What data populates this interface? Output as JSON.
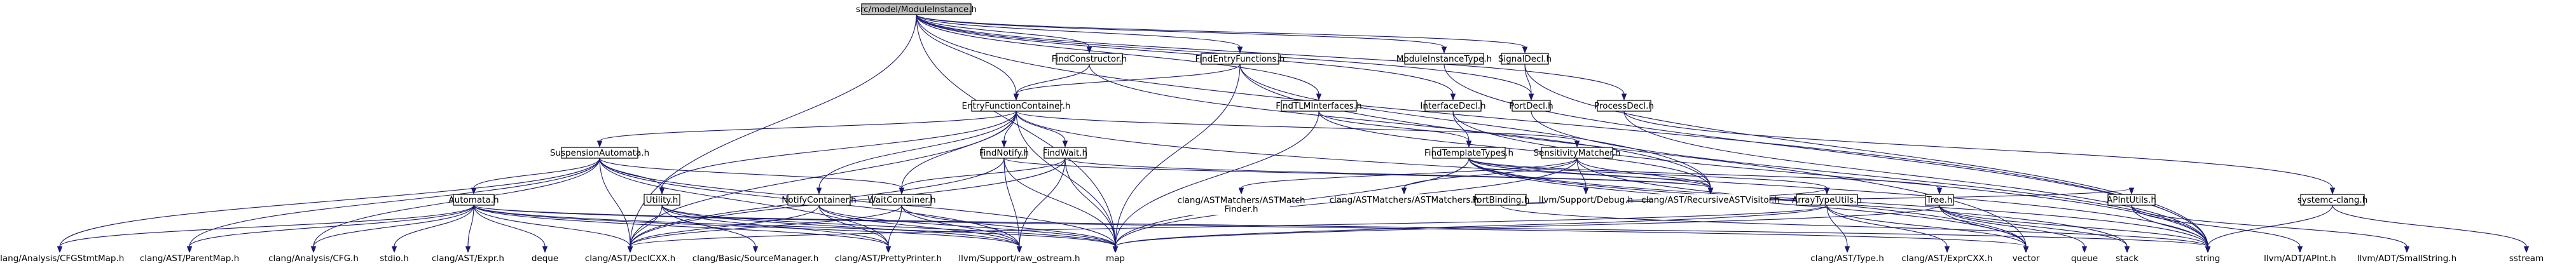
{
  "diagram": {
    "title": "",
    "root": "ModuleInstance",
    "nodes": [
      {
        "id": "ModuleInstance",
        "lines": [
          "src/model/ModuleInstance.h"
        ],
        "documented": true
      },
      {
        "id": "FindConstructor",
        "lines": [
          "FindConstructor.h"
        ],
        "documented": true
      },
      {
        "id": "FindEntryFunctions",
        "lines": [
          "FindEntryFunctions.h"
        ],
        "documented": true
      },
      {
        "id": "ModuleInstanceType",
        "lines": [
          "ModuleInstanceType.h"
        ],
        "documented": true
      },
      {
        "id": "SignalDecl",
        "lines": [
          "SignalDecl.h"
        ],
        "documented": true
      },
      {
        "id": "EntryFunctionContainer",
        "lines": [
          "EntryFunctionContainer.h"
        ],
        "documented": true
      },
      {
        "id": "FindTLMInterfaces",
        "lines": [
          "FindTLMInterfaces.h"
        ],
        "documented": true
      },
      {
        "id": "InterfaceDecl",
        "lines": [
          "InterfaceDecl.h"
        ],
        "documented": true
      },
      {
        "id": "PortDecl",
        "lines": [
          "PortDecl.h"
        ],
        "documented": true
      },
      {
        "id": "ProcessDecl",
        "lines": [
          "ProcessDecl.h"
        ],
        "documented": true
      },
      {
        "id": "SuspensionAutomata",
        "lines": [
          "SuspensionAutomata.h"
        ],
        "documented": true
      },
      {
        "id": "FindNotify",
        "lines": [
          "FindNotify.h"
        ],
        "documented": true
      },
      {
        "id": "FindWait",
        "lines": [
          "FindWait.h"
        ],
        "documented": true
      },
      {
        "id": "SensitivityMatcher",
        "lines": [
          "SensitivityMatcher.h"
        ],
        "documented": true
      },
      {
        "id": "FindTemplateTypes",
        "lines": [
          "FindTemplateTypes.h"
        ],
        "documented": true
      },
      {
        "id": "PortBinding",
        "lines": [
          "PortBinding.h"
        ],
        "documented": true
      },
      {
        "id": "Automata",
        "lines": [
          "Automata.h"
        ],
        "documented": true
      },
      {
        "id": "Utility",
        "lines": [
          "Utility.h"
        ],
        "documented": true
      },
      {
        "id": "NotifyContainer",
        "lines": [
          "NotifyContainer.h"
        ],
        "documented": true
      },
      {
        "id": "WaitContainer",
        "lines": [
          "WaitContainer.h"
        ],
        "documented": true
      },
      {
        "id": "ASTMatchFinder",
        "lines": [
          "clang/ASTMatchers/ASTMatch",
          "Finder.h"
        ],
        "documented": false
      },
      {
        "id": "ASTMatchers",
        "lines": [
          "clang/ASTMatchers/ASTMatchers.h"
        ],
        "documented": false
      },
      {
        "id": "Debug",
        "lines": [
          "llvm/Support/Debug.h"
        ],
        "documented": false
      },
      {
        "id": "RecursiveASTVisitor",
        "lines": [
          "clang/AST/RecursiveASTVisitor.h"
        ],
        "documented": false
      },
      {
        "id": "ArrayTypeUtils",
        "lines": [
          "ArrayTypeUtils.h"
        ],
        "documented": true
      },
      {
        "id": "Tree",
        "lines": [
          "Tree.h"
        ],
        "documented": true
      },
      {
        "id": "APIntUtils",
        "lines": [
          "APIntUtils.h"
        ],
        "documented": true
      },
      {
        "id": "systemcclang",
        "lines": [
          "systemc-clang.h"
        ],
        "documented": true
      },
      {
        "id": "CFGStmtMap",
        "lines": [
          "clang/Analysis/CFGStmtMap.h"
        ],
        "documented": false
      },
      {
        "id": "ParentMap",
        "lines": [
          "clang/AST/ParentMap.h"
        ],
        "documented": false
      },
      {
        "id": "CFG",
        "lines": [
          "clang/Analysis/CFG.h"
        ],
        "documented": false
      },
      {
        "id": "stdio",
        "lines": [
          "stdio.h"
        ],
        "documented": false
      },
      {
        "id": "Expr",
        "lines": [
          "clang/AST/Expr.h"
        ],
        "documented": false
      },
      {
        "id": "deque",
        "lines": [
          "deque"
        ],
        "documented": false
      },
      {
        "id": "DeclCXX",
        "lines": [
          "clang/AST/DeclCXX.h"
        ],
        "documented": false
      },
      {
        "id": "SourceManager",
        "lines": [
          "clang/Basic/SourceManager.h"
        ],
        "documented": false
      },
      {
        "id": "PrettyPrinter",
        "lines": [
          "clang/AST/PrettyPrinter.h"
        ],
        "documented": false
      },
      {
        "id": "rawostream",
        "lines": [
          "llvm/Support/raw_ostream.h"
        ],
        "documented": false
      },
      {
        "id": "map",
        "lines": [
          "map"
        ],
        "documented": false
      },
      {
        "id": "Type",
        "lines": [
          "clang/AST/Type.h"
        ],
        "documented": false
      },
      {
        "id": "ExprCXX",
        "lines": [
          "clang/AST/ExprCXX.h"
        ],
        "documented": false
      },
      {
        "id": "vector",
        "lines": [
          "vector"
        ],
        "documented": false
      },
      {
        "id": "queue",
        "lines": [
          "queue"
        ],
        "documented": false
      },
      {
        "id": "stack",
        "lines": [
          "stack"
        ],
        "documented": false
      },
      {
        "id": "string",
        "lines": [
          "string"
        ],
        "documented": false
      },
      {
        "id": "APInt",
        "lines": [
          "llvm/ADT/APInt.h"
        ],
        "documented": false
      },
      {
        "id": "SmallString",
        "lines": [
          "llvm/ADT/SmallString.h"
        ],
        "documented": false
      },
      {
        "id": "sstream",
        "lines": [
          "sstream"
        ],
        "documented": false
      }
    ],
    "edges": [
      [
        "ModuleInstance",
        "FindConstructor"
      ],
      [
        "ModuleInstance",
        "FindEntryFunctions"
      ],
      [
        "ModuleInstance",
        "ModuleInstanceType"
      ],
      [
        "ModuleInstance",
        "SignalDecl"
      ],
      [
        "ModuleInstance",
        "EntryFunctionContainer"
      ],
      [
        "ModuleInstance",
        "FindTLMInterfaces"
      ],
      [
        "ModuleInstance",
        "InterfaceDecl"
      ],
      [
        "ModuleInstance",
        "PortDecl"
      ],
      [
        "ModuleInstance",
        "ProcessDecl"
      ],
      [
        "ModuleInstance",
        "DeclCXX"
      ],
      [
        "ModuleInstance",
        "map"
      ],
      [
        "ModuleInstance",
        "string"
      ],
      [
        "FindConstructor",
        "EntryFunctionContainer"
      ],
      [
        "FindConstructor",
        "RecursiveASTVisitor"
      ],
      [
        "FindEntryFunctions",
        "EntryFunctionContainer"
      ],
      [
        "FindEntryFunctions",
        "RecursiveASTVisitor"
      ],
      [
        "FindEntryFunctions",
        "vector"
      ],
      [
        "FindEntryFunctions",
        "map"
      ],
      [
        "ModuleInstanceType",
        "string"
      ],
      [
        "SignalDecl",
        "PortDecl"
      ],
      [
        "SignalDecl",
        "string"
      ],
      [
        "EntryFunctionContainer",
        "SuspensionAutomata"
      ],
      [
        "EntryFunctionContainer",
        "FindNotify"
      ],
      [
        "EntryFunctionContainer",
        "FindWait"
      ],
      [
        "EntryFunctionContainer",
        "SensitivityMatcher"
      ],
      [
        "EntryFunctionContainer",
        "DeclCXX"
      ],
      [
        "EntryFunctionContainer",
        "Utility"
      ],
      [
        "EntryFunctionContainer",
        "WaitContainer"
      ],
      [
        "EntryFunctionContainer",
        "NotifyContainer"
      ],
      [
        "EntryFunctionContainer",
        "map"
      ],
      [
        "EntryFunctionContainer",
        "string"
      ],
      [
        "FindTLMInterfaces",
        "FindTemplateTypes"
      ],
      [
        "FindTLMInterfaces",
        "RecursiveASTVisitor"
      ],
      [
        "FindTLMInterfaces",
        "map"
      ],
      [
        "InterfaceDecl",
        "FindTemplateTypes"
      ],
      [
        "InterfaceDecl",
        "string"
      ],
      [
        "PortDecl",
        "string"
      ],
      [
        "ProcessDecl",
        "systemcclang"
      ],
      [
        "ProcessDecl",
        "string"
      ],
      [
        "SuspensionAutomata",
        "Automata"
      ],
      [
        "SuspensionAutomata",
        "Utility"
      ],
      [
        "SuspensionAutomata",
        "WaitContainer"
      ],
      [
        "SuspensionAutomata",
        "CFGStmtMap"
      ],
      [
        "SuspensionAutomata",
        "ParentMap"
      ],
      [
        "SuspensionAutomata",
        "CFG"
      ],
      [
        "SuspensionAutomata",
        "DeclCXX"
      ],
      [
        "SuspensionAutomata",
        "PrettyPrinter"
      ],
      [
        "SuspensionAutomata",
        "rawostream"
      ],
      [
        "SuspensionAutomata",
        "map"
      ],
      [
        "FindNotify",
        "RecursiveASTVisitor"
      ],
      [
        "FindNotify",
        "DeclCXX"
      ],
      [
        "FindNotify",
        "rawostream"
      ],
      [
        "FindNotify",
        "map"
      ],
      [
        "FindWait",
        "WaitContainer"
      ],
      [
        "FindWait",
        "DeclCXX"
      ],
      [
        "FindWait",
        "RecursiveASTVisitor"
      ],
      [
        "FindWait",
        "rawostream"
      ],
      [
        "FindWait",
        "map"
      ],
      [
        "SensitivityMatcher",
        "ASTMatchFinder"
      ],
      [
        "SensitivityMatcher",
        "ASTMatchers"
      ],
      [
        "SensitivityMatcher",
        "Debug"
      ],
      [
        "SensitivityMatcher",
        "RecursiveASTVisitor"
      ],
      [
        "SensitivityMatcher",
        "map"
      ],
      [
        "SensitivityMatcher",
        "vector"
      ],
      [
        "FindTemplateTypes",
        "ArrayTypeUtils"
      ],
      [
        "FindTemplateTypes",
        "Tree"
      ],
      [
        "FindTemplateTypes",
        "RecursiveASTVisitor"
      ],
      [
        "FindTemplateTypes",
        "string"
      ],
      [
        "FindTemplateTypes",
        "vector"
      ],
      [
        "FindTemplateTypes",
        "stack"
      ],
      [
        "FindTemplateTypes",
        "map"
      ],
      [
        "PortBinding",
        "ArrayTypeUtils"
      ],
      [
        "PortBinding",
        "APIntUtils"
      ],
      [
        "PortBinding",
        "string"
      ],
      [
        "Automata",
        "CFGStmtMap"
      ],
      [
        "Automata",
        "ParentMap"
      ],
      [
        "Automata",
        "CFG"
      ],
      [
        "Automata",
        "stdio"
      ],
      [
        "Automata",
        "Expr"
      ],
      [
        "Automata",
        "deque"
      ],
      [
        "Automata",
        "DeclCXX"
      ],
      [
        "Automata",
        "PrettyPrinter"
      ],
      [
        "Automata",
        "rawostream"
      ],
      [
        "Automata",
        "map"
      ],
      [
        "Automata",
        "vector"
      ],
      [
        "Automata",
        "string"
      ],
      [
        "Utility",
        "DeclCXX"
      ],
      [
        "Utility",
        "SourceManager"
      ],
      [
        "Utility",
        "PrettyPrinter"
      ],
      [
        "Utility",
        "rawostream"
      ],
      [
        "Utility",
        "map"
      ],
      [
        "NotifyContainer",
        "DeclCXX"
      ],
      [
        "NotifyContainer",
        "PrettyPrinter"
      ],
      [
        "NotifyContainer",
        "rawostream"
      ],
      [
        "NotifyContainer",
        "map"
      ],
      [
        "WaitContainer",
        "DeclCXX"
      ],
      [
        "WaitContainer",
        "PrettyPrinter"
      ],
      [
        "WaitContainer",
        "rawostream"
      ],
      [
        "WaitContainer",
        "map"
      ],
      [
        "ArrayTypeUtils",
        "Type"
      ],
      [
        "ArrayTypeUtils",
        "ExprCXX"
      ],
      [
        "ArrayTypeUtils",
        "vector"
      ],
      [
        "ArrayTypeUtils",
        "DeclCXX"
      ],
      [
        "ArrayTypeUtils",
        "map"
      ],
      [
        "Tree",
        "queue"
      ],
      [
        "Tree",
        "stack"
      ],
      [
        "Tree",
        "string"
      ],
      [
        "Tree",
        "vector"
      ],
      [
        "Tree",
        "map"
      ],
      [
        "APIntUtils",
        "APInt"
      ],
      [
        "APIntUtils",
        "SmallString"
      ],
      [
        "APIntUtils",
        "string"
      ],
      [
        "systemcclang",
        "string"
      ],
      [
        "systemcclang",
        "sstream"
      ]
    ]
  },
  "colors": {
    "edge": "#191970",
    "root_fill": "#bfbfbf",
    "node_border": "#000000",
    "background": "#ffffff"
  }
}
